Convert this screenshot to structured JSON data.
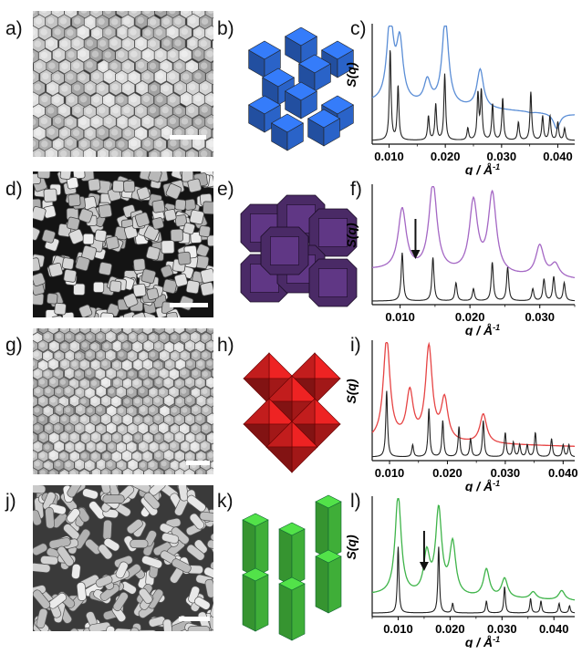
{
  "labels": {
    "a": "a)",
    "b": "b)",
    "c": "c)",
    "d": "d)",
    "e": "e)",
    "f": "f)",
    "g": "g)",
    "h": "h)",
    "i": "i)",
    "j": "j)",
    "k": "k)",
    "l": "l)"
  },
  "colors": {
    "blue": "#5b8ed6",
    "purple": "#a467c4",
    "red": "#e64444",
    "green": "#3fb44a",
    "black": "#222222",
    "model_blue": "#2a63c8",
    "model_purple": "#4a2a66",
    "model_red": "#d82020",
    "model_green": "#3fae38"
  },
  "chart_data": [
    {
      "type": "line",
      "panel": "c",
      "ylabel": "S(q)",
      "xlabel": "q / Å",
      "xlabel_sup": "-1",
      "xlim": [
        0.007,
        0.043
      ],
      "xticks": [
        0.01,
        0.02,
        0.03,
        0.04
      ],
      "xtick_labels": [
        "0.010",
        "0.020",
        "0.030",
        "0.040"
      ],
      "measured_peaks": [
        [
          0.0102,
          0.92
        ],
        [
          0.0119,
          0.72
        ],
        [
          0.0168,
          0.42
        ],
        [
          0.02,
          0.95
        ],
        [
          0.0262,
          0.55
        ],
        [
          0.0352,
          0.22
        ],
        [
          0.0398,
          0.1
        ]
      ],
      "measured_base": 0.38,
      "model_peaks": [
        [
          0.0102,
          0.75
        ],
        [
          0.0116,
          0.45
        ],
        [
          0.017,
          0.2
        ],
        [
          0.0183,
          0.3
        ],
        [
          0.0199,
          0.55
        ],
        [
          0.024,
          0.1
        ],
        [
          0.0258,
          0.38
        ],
        [
          0.0264,
          0.4
        ],
        [
          0.0284,
          0.3
        ],
        [
          0.0302,
          0.35
        ],
        [
          0.033,
          0.15
        ],
        [
          0.0352,
          0.4
        ],
        [
          0.0373,
          0.2
        ],
        [
          0.0386,
          0.2
        ],
        [
          0.04,
          0.15
        ],
        [
          0.0412,
          0.1
        ]
      ],
      "arrow": null
    },
    {
      "type": "line",
      "panel": "f",
      "ylabel": "S(q)",
      "xlabel": "q / Å",
      "xlabel_sup": "-1",
      "xlim": [
        0.006,
        0.035
      ],
      "xticks": [
        0.01,
        0.02,
        0.03
      ],
      "xtick_labels": [
        "0.010",
        "0.020",
        "0.030"
      ],
      "measured_peaks": [
        [
          0.0103,
          0.7
        ],
        [
          0.0147,
          0.92
        ],
        [
          0.0205,
          0.78
        ],
        [
          0.0232,
          0.85
        ],
        [
          0.03,
          0.45
        ],
        [
          0.0322,
          0.3
        ]
      ],
      "measured_base": 0.32,
      "model_peaks": [
        [
          0.0103,
          0.4
        ],
        [
          0.0147,
          0.36
        ],
        [
          0.018,
          0.15
        ],
        [
          0.0205,
          0.1
        ],
        [
          0.0232,
          0.32
        ],
        [
          0.0254,
          0.28
        ],
        [
          0.029,
          0.1
        ],
        [
          0.0306,
          0.18
        ],
        [
          0.032,
          0.2
        ],
        [
          0.0335,
          0.15
        ]
      ],
      "arrow": 0.0122
    },
    {
      "type": "line",
      "panel": "i",
      "ylabel": "S(q)",
      "xlabel": "q / Å",
      "xlabel_sup": "-1",
      "xlim": [
        0.007,
        0.042
      ],
      "xticks": [
        0.01,
        0.02,
        0.03,
        0.04
      ],
      "xtick_labels": [
        "0.010",
        "0.020",
        "0.030",
        "0.040"
      ],
      "measured_peaks": [
        [
          0.0095,
          0.95
        ],
        [
          0.0135,
          0.5
        ],
        [
          0.0168,
          0.88
        ],
        [
          0.0195,
          0.45
        ],
        [
          0.0262,
          0.35
        ]
      ],
      "measured_base": 0.18,
      "model_peaks": [
        [
          0.0095,
          0.55
        ],
        [
          0.014,
          0.1
        ],
        [
          0.0168,
          0.4
        ],
        [
          0.0192,
          0.3
        ],
        [
          0.022,
          0.25
        ],
        [
          0.024,
          0.15
        ],
        [
          0.0262,
          0.3
        ],
        [
          0.03,
          0.2
        ],
        [
          0.0314,
          0.12
        ],
        [
          0.0325,
          0.1
        ],
        [
          0.0338,
          0.1
        ],
        [
          0.0352,
          0.2
        ],
        [
          0.038,
          0.15
        ],
        [
          0.04,
          0.1
        ],
        [
          0.041,
          0.1
        ]
      ],
      "arrow": null
    },
    {
      "type": "line",
      "panel": "l",
      "ylabel": "S(q)",
      "xlabel": "q / Å",
      "xlabel_sup": "-1",
      "xlim": [
        0.005,
        0.044
      ],
      "xticks": [
        0.01,
        0.02,
        0.03,
        0.04
      ],
      "xtick_labels": [
        "0.010",
        "0.020",
        "0.030",
        "0.040"
      ],
      "measured_peaks": [
        [
          0.01,
          0.95
        ],
        [
          0.0155,
          0.45
        ],
        [
          0.0178,
          0.82
        ],
        [
          0.0205,
          0.55
        ],
        [
          0.027,
          0.35
        ],
        [
          0.0305,
          0.28
        ],
        [
          0.036,
          0.18
        ],
        [
          0.0415,
          0.2
        ]
      ],
      "measured_base": 0.2,
      "model_peaks": [
        [
          0.01,
          0.55
        ],
        [
          0.0178,
          0.55
        ],
        [
          0.0205,
          0.08
        ],
        [
          0.027,
          0.1
        ],
        [
          0.0305,
          0.22
        ],
        [
          0.0355,
          0.12
        ],
        [
          0.0375,
          0.1
        ],
        [
          0.041,
          0.08
        ],
        [
          0.043,
          0.06
        ]
      ],
      "arrow": 0.015
    }
  ]
}
